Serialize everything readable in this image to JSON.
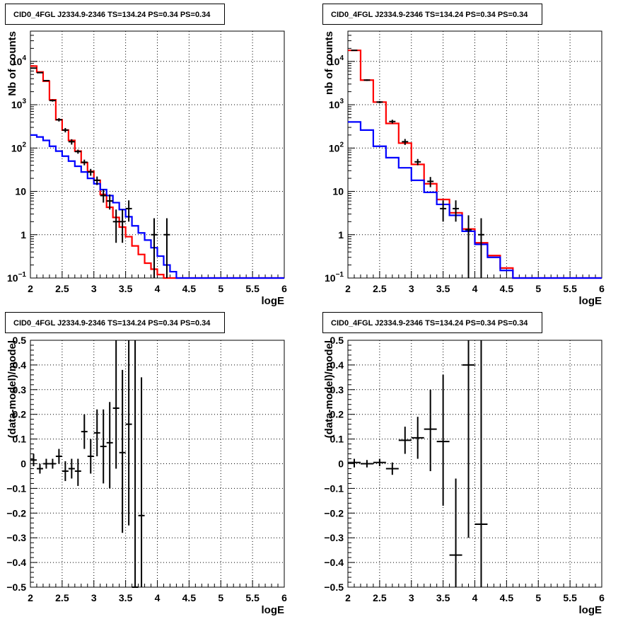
{
  "chart_data": [
    {
      "id": "top-left",
      "type": "histogram",
      "title": "CID0_4FGL J2334.9-2346 TS=134.24 PS=0.34 PS=0.34",
      "xlabel": "logE",
      "ylabel": "Nb of counts",
      "xlim": [
        2,
        6
      ],
      "ylim": [
        0.1,
        50000
      ],
      "yscale": "log",
      "grid": true,
      "xticks": [
        "2",
        "2.5",
        "3",
        "3.5",
        "4",
        "4.5",
        "5",
        "5.5",
        "6"
      ],
      "yticks": [
        {
          "v": 0.1,
          "base": "10",
          "exp": "−1",
          "label": ""
        },
        {
          "v": 1,
          "label": "1"
        },
        {
          "v": 10,
          "label": "10"
        },
        {
          "v": 100,
          "base": "10",
          "exp": "2",
          "label": ""
        },
        {
          "v": 1000,
          "base": "10",
          "exp": "3",
          "label": ""
        },
        {
          "v": 10000,
          "base": "10",
          "exp": "4",
          "label": ""
        }
      ],
      "series": [
        {
          "color": "#ff0000",
          "kind": "step",
          "edges": [
            2,
            2.1,
            2.2,
            2.3,
            2.4,
            2.5,
            2.6,
            2.7,
            2.8,
            2.9,
            3,
            3.1,
            3.2,
            3.3,
            3.4,
            3.5,
            3.6,
            3.7,
            3.8,
            3.9,
            4,
            4.1,
            4.2,
            4.3,
            4.4,
            4.5,
            4.6,
            4.7,
            4.8,
            4.9,
            5,
            5.1,
            5.2,
            5.3,
            5.4,
            5.5,
            5.6,
            5.7,
            5.8,
            5.9,
            6
          ],
          "values": [
            7800,
            5700,
            3500,
            1300,
            450,
            260,
            150,
            85,
            46,
            29,
            18,
            8.5,
            4.3,
            2.5,
            1.5,
            0.9,
            0.55,
            0.35,
            0.22,
            0.16,
            0.12,
            0.1,
            0.1,
            0.1,
            0.1,
            0.1,
            0.1,
            0.1,
            0.1,
            0.1,
            0.1,
            0.1,
            0.1,
            0.1,
            0.1,
            0.1,
            0.1,
            0.1,
            0.1,
            0.1
          ]
        },
        {
          "color": "#0000ff",
          "kind": "step",
          "edges": [
            2,
            2.1,
            2.2,
            2.3,
            2.4,
            2.5,
            2.6,
            2.7,
            2.8,
            2.9,
            3,
            3.1,
            3.2,
            3.3,
            3.4,
            3.5,
            3.6,
            3.7,
            3.8,
            3.9,
            4,
            4.1,
            4.2,
            4.3,
            4.4,
            4.5,
            4.6,
            4.7,
            4.8,
            4.9,
            5,
            5.1,
            5.2,
            5.3,
            5.4,
            5.5,
            5.6,
            5.7,
            5.8,
            5.9,
            6
          ],
          "values": [
            200,
            180,
            150,
            110,
            85,
            65,
            50,
            38,
            28,
            20,
            15,
            11,
            8,
            5.5,
            3.8,
            2.6,
            1.6,
            1.1,
            0.75,
            0.5,
            0.32,
            0.2,
            0.14,
            0.1,
            0.1,
            0.1,
            0.1,
            0.1,
            0.1,
            0.1,
            0.1,
            0.1,
            0.1,
            0.1,
            0.1,
            0.1,
            0.1,
            0.1,
            0.1,
            0.1
          ]
        },
        {
          "color": "#000000",
          "kind": "points",
          "points": [
            {
              "x": 2.05,
              "y": 7000,
              "lo": 6800,
              "hi": 7200
            },
            {
              "x": 2.15,
              "y": 5500,
              "lo": 5350,
              "hi": 5650
            },
            {
              "x": 2.25,
              "y": 3600,
              "lo": 3480,
              "hi": 3720
            },
            {
              "x": 2.35,
              "y": 1250,
              "lo": 1180,
              "hi": 1320
            },
            {
              "x": 2.45,
              "y": 450,
              "lo": 410,
              "hi": 490
            },
            {
              "x": 2.55,
              "y": 260,
              "lo": 230,
              "hi": 290
            },
            {
              "x": 2.65,
              "y": 140,
              "lo": 120,
              "hi": 160
            },
            {
              "x": 2.75,
              "y": 83,
              "lo": 74,
              "hi": 92
            },
            {
              "x": 2.85,
              "y": 47,
              "lo": 40,
              "hi": 54
            },
            {
              "x": 2.95,
              "y": 28,
              "lo": 23,
              "hi": 33
            },
            {
              "x": 3.05,
              "y": 18,
              "lo": 14,
              "hi": 22
            },
            {
              "x": 3.15,
              "y": 8,
              "lo": 5.5,
              "hi": 11
            },
            {
              "x": 3.25,
              "y": 6,
              "lo": 3.8,
              "hi": 8.5
            },
            {
              "x": 3.35,
              "y": 2,
              "lo": 0.65,
              "hi": 3.8
            },
            {
              "x": 3.45,
              "y": 2,
              "lo": 0.65,
              "hi": 3.8
            },
            {
              "x": 3.55,
              "y": 4,
              "lo": 2,
              "hi": 6.2
            },
            {
              "x": 3.95,
              "y": 1,
              "lo": 0.1,
              "hi": 2.4
            },
            {
              "x": 4.15,
              "y": 1,
              "lo": 0.1,
              "hi": 2.4
            }
          ]
        }
      ]
    },
    {
      "id": "top-right",
      "type": "histogram",
      "title": "CID0_4FGL J2334.9-2346 TS=134.24 PS=0.34 PS=0.34",
      "xlabel": "logE",
      "ylabel": "nb of counts",
      "xlim": [
        2,
        6
      ],
      "ylim": [
        0.1,
        50000
      ],
      "yscale": "log",
      "grid": true,
      "xticks": [
        "2",
        "2.5",
        "3",
        "3.5",
        "4",
        "4.5",
        "5",
        "5.5",
        "6"
      ],
      "yticks": [
        {
          "v": 0.1,
          "base": "10",
          "exp": "−1",
          "label": ""
        },
        {
          "v": 1,
          "label": "1"
        },
        {
          "v": 10,
          "label": "10"
        },
        {
          "v": 100,
          "base": "10",
          "exp": "2",
          "label": ""
        },
        {
          "v": 1000,
          "base": "10",
          "exp": "3",
          "label": ""
        },
        {
          "v": 10000,
          "base": "10",
          "exp": "4",
          "label": ""
        }
      ],
      "series": [
        {
          "color": "#ff0000",
          "kind": "step",
          "edges": [
            2,
            2.2,
            2.4,
            2.6,
            2.8,
            3,
            3.2,
            3.4,
            3.6,
            3.8,
            4,
            4.2,
            4.4,
            4.6,
            4.8,
            5,
            5.2,
            5.4,
            5.6,
            5.8,
            6
          ],
          "values": [
            18000,
            3700,
            1150,
            370,
            130,
            42,
            15,
            6.5,
            3.2,
            1.35,
            0.65,
            0.33,
            0.17,
            0.1,
            0.1,
            0.1,
            0.1,
            0.1,
            0.1,
            0.1
          ]
        },
        {
          "color": "#0000ff",
          "kind": "step",
          "edges": [
            2,
            2.2,
            2.4,
            2.6,
            2.8,
            3,
            3.2,
            3.4,
            3.6,
            3.8,
            4,
            4.2,
            4.4,
            4.6,
            4.8,
            5,
            5.2,
            5.4,
            5.6,
            5.8,
            6
          ],
          "values": [
            400,
            260,
            110,
            60,
            35,
            18,
            9.5,
            5,
            2.8,
            1.2,
            0.6,
            0.3,
            0.15,
            0.1,
            0.1,
            0.1,
            0.1,
            0.1,
            0.1,
            0.1
          ]
        },
        {
          "color": "#000000",
          "kind": "points",
          "points": [
            {
              "x": 2.1,
              "y": 18000,
              "lo": 17700,
              "hi": 18300
            },
            {
              "x": 2.3,
              "y": 3700,
              "lo": 3550,
              "hi": 3850
            },
            {
              "x": 2.5,
              "y": 1150,
              "lo": 1080,
              "hi": 1220
            },
            {
              "x": 2.7,
              "y": 410,
              "lo": 370,
              "hi": 450
            },
            {
              "x": 2.9,
              "y": 140,
              "lo": 118,
              "hi": 162
            },
            {
              "x": 3.1,
              "y": 48,
              "lo": 40,
              "hi": 56
            },
            {
              "x": 3.3,
              "y": 17,
              "lo": 12.5,
              "hi": 21.5
            },
            {
              "x": 3.5,
              "y": 4,
              "lo": 2,
              "hi": 6.2
            },
            {
              "x": 3.7,
              "y": 4,
              "lo": 2,
              "hi": 6.2
            },
            {
              "x": 3.9,
              "y": 1.3,
              "lo": 0.1,
              "hi": 2.8
            },
            {
              "x": 4.1,
              "y": 1,
              "lo": 0.1,
              "hi": 2.4
            }
          ]
        }
      ]
    },
    {
      "id": "bottom-left",
      "type": "scatter",
      "title": "CID0_4FGL J2334.9-2346 TS=134.24 PS=0.34 PS=0.34",
      "xlabel": "logE",
      "ylabel": "(data-model)/model",
      "xlim": [
        2,
        6
      ],
      "ylim": [
        -0.5,
        0.5
      ],
      "yscale": "linear",
      "grid": true,
      "xticks": [
        "2",
        "2.5",
        "3",
        "3.5",
        "4",
        "4.5",
        "5",
        "5.5",
        "6"
      ],
      "yticks": [
        {
          "v": -0.5,
          "label": "−0.5"
        },
        {
          "v": -0.4,
          "label": "−0.4"
        },
        {
          "v": -0.3,
          "label": "−0.3"
        },
        {
          "v": -0.2,
          "label": "−0.2"
        },
        {
          "v": -0.1,
          "label": "−0.1"
        },
        {
          "v": 0,
          "label": "0"
        },
        {
          "v": 0.1,
          "label": "0.1"
        },
        {
          "v": 0.2,
          "label": "0.2"
        },
        {
          "v": 0.3,
          "label": "0.3"
        },
        {
          "v": 0.4,
          "label": "0.4"
        },
        {
          "v": 0.5,
          "label": "0.5"
        }
      ],
      "series": [
        {
          "color": "#000000",
          "kind": "points",
          "xerr": 0.05,
          "points": [
            {
              "x": 2.05,
              "y": 0.015,
              "lo": -0.01,
              "hi": 0.04
            },
            {
              "x": 2.15,
              "y": -0.02,
              "lo": -0.04,
              "hi": 0.0
            },
            {
              "x": 2.25,
              "y": 0.0,
              "lo": -0.02,
              "hi": 0.02
            },
            {
              "x": 2.35,
              "y": 0.0,
              "lo": -0.02,
              "hi": 0.02
            },
            {
              "x": 2.45,
              "y": 0.03,
              "lo": 0.0,
              "hi": 0.06
            },
            {
              "x": 2.55,
              "y": -0.03,
              "lo": -0.07,
              "hi": 0.01
            },
            {
              "x": 2.65,
              "y": -0.02,
              "lo": -0.06,
              "hi": 0.02
            },
            {
              "x": 2.75,
              "y": -0.03,
              "lo": -0.09,
              "hi": 0.02
            },
            {
              "x": 2.85,
              "y": 0.13,
              "lo": 0.06,
              "hi": 0.2
            },
            {
              "x": 2.95,
              "y": 0.03,
              "lo": -0.04,
              "hi": 0.1
            },
            {
              "x": 3.05,
              "y": 0.125,
              "lo": 0.03,
              "hi": 0.22
            },
            {
              "x": 3.15,
              "y": 0.07,
              "lo": -0.08,
              "hi": 0.22
            },
            {
              "x": 3.25,
              "y": 0.085,
              "lo": -0.1,
              "hi": 0.25
            },
            {
              "x": 3.35,
              "y": 0.225,
              "lo": -0.02,
              "hi": 0.5
            },
            {
              "x": 3.45,
              "y": 0.045,
              "lo": -0.28,
              "hi": 0.38
            },
            {
              "x": 3.55,
              "y": 0.16,
              "lo": -0.25,
              "hi": 0.5
            },
            {
              "x": 3.65,
              "y": -0.5,
              "lo": -0.5,
              "hi": 0.5
            },
            {
              "x": 3.75,
              "y": -0.21,
              "lo": -0.5,
              "hi": 0.35
            }
          ]
        }
      ]
    },
    {
      "id": "bottom-right",
      "type": "scatter",
      "title": "CID0_4FGL J2334.9-2346 TS=134.24 PS=0.34 PS=0.34",
      "xlabel": "logE",
      "ylabel": "(data-model)/model",
      "xlim": [
        2,
        6
      ],
      "ylim": [
        -0.5,
        0.5
      ],
      "yscale": "linear",
      "grid": true,
      "xticks": [
        "2",
        "2.5",
        "3",
        "3.5",
        "4",
        "4.5",
        "5",
        "5.5",
        "6"
      ],
      "yticks": [
        {
          "v": -0.5,
          "label": "−0.5"
        },
        {
          "v": -0.4,
          "label": "−0.4"
        },
        {
          "v": -0.3,
          "label": "−0.3"
        },
        {
          "v": -0.2,
          "label": "−0.2"
        },
        {
          "v": -0.1,
          "label": "−0.1"
        },
        {
          "v": 0,
          "label": "0"
        },
        {
          "v": 0.1,
          "label": "0.1"
        },
        {
          "v": 0.2,
          "label": "0.2"
        },
        {
          "v": 0.3,
          "label": "0.3"
        },
        {
          "v": 0.4,
          "label": "0.4"
        },
        {
          "v": 0.5,
          "label": "0.5"
        }
      ],
      "series": [
        {
          "color": "#000000",
          "kind": "points",
          "xerr": 0.1,
          "points": [
            {
              "x": 2.1,
              "y": 0.005,
              "lo": -0.015,
              "hi": 0.02
            },
            {
              "x": 2.3,
              "y": 0.0,
              "lo": -0.015,
              "hi": 0.015
            },
            {
              "x": 2.5,
              "y": 0.005,
              "lo": -0.01,
              "hi": 0.02
            },
            {
              "x": 2.7,
              "y": -0.02,
              "lo": -0.045,
              "hi": 0.005
            },
            {
              "x": 2.9,
              "y": 0.095,
              "lo": 0.04,
              "hi": 0.15
            },
            {
              "x": 3.1,
              "y": 0.105,
              "lo": 0.02,
              "hi": 0.19
            },
            {
              "x": 3.3,
              "y": 0.14,
              "lo": -0.03,
              "hi": 0.3
            },
            {
              "x": 3.5,
              "y": 0.09,
              "lo": -0.17,
              "hi": 0.36
            },
            {
              "x": 3.7,
              "y": -0.37,
              "lo": -0.5,
              "hi": -0.06
            },
            {
              "x": 3.9,
              "y": 0.4,
              "lo": -0.3,
              "hi": 0.5
            },
            {
              "x": 4.1,
              "y": -0.245,
              "lo": -0.5,
              "hi": 0.5
            }
          ]
        }
      ]
    }
  ]
}
